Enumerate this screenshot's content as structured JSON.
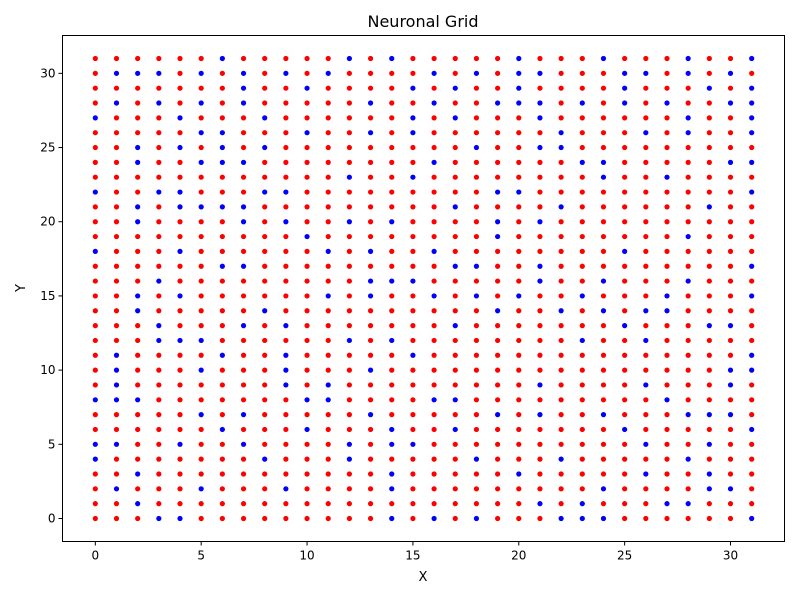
{
  "chart_data": {
    "type": "scatter",
    "title": "Neuronal Grid",
    "xlabel": "X",
    "ylabel": "Y",
    "xlim": [
      -1.55,
      32.55
    ],
    "ylim": [
      -1.55,
      32.55
    ],
    "xticks": [
      0,
      5,
      10,
      15,
      20,
      25,
      30
    ],
    "yticks": [
      0,
      5,
      10,
      15,
      20,
      25,
      30
    ],
    "grid": false,
    "legend": "none",
    "grid_size": 32,
    "colors": {
      "red": "#ff0000",
      "blue": "#0000ff"
    },
    "points_note": "Points at every integer (x, y) with x and y in 0..31; color is red unless listed in blue_points.",
    "blue_points": [
      [
        0,
        4
      ],
      [
        0,
        5
      ],
      [
        0,
        8
      ],
      [
        0,
        18
      ],
      [
        0,
        22
      ],
      [
        0,
        27
      ],
      [
        1,
        2
      ],
      [
        1,
        5
      ],
      [
        1,
        8
      ],
      [
        1,
        9
      ],
      [
        1,
        10
      ],
      [
        1,
        11
      ],
      [
        1,
        28
      ],
      [
        1,
        30
      ],
      [
        2,
        1
      ],
      [
        2,
        3
      ],
      [
        2,
        8
      ],
      [
        2,
        14
      ],
      [
        2,
        15
      ],
      [
        2,
        20
      ],
      [
        2,
        21
      ],
      [
        2,
        24
      ],
      [
        2,
        25
      ],
      [
        2,
        30
      ],
      [
        3,
        0
      ],
      [
        3,
        12
      ],
      [
        3,
        13
      ],
      [
        3,
        16
      ],
      [
        3,
        22
      ],
      [
        3,
        28
      ],
      [
        3,
        30
      ],
      [
        4,
        0
      ],
      [
        4,
        5
      ],
      [
        4,
        12
      ],
      [
        4,
        15
      ],
      [
        4,
        18
      ],
      [
        4,
        21
      ],
      [
        4,
        22
      ],
      [
        4,
        25
      ],
      [
        4,
        27
      ],
      [
        5,
        2
      ],
      [
        5,
        7
      ],
      [
        5,
        10
      ],
      [
        5,
        12
      ],
      [
        5,
        21
      ],
      [
        5,
        24
      ],
      [
        5,
        26
      ],
      [
        5,
        28
      ],
      [
        5,
        30
      ],
      [
        6,
        6
      ],
      [
        6,
        11
      ],
      [
        6,
        17
      ],
      [
        6,
        21
      ],
      [
        6,
        24
      ],
      [
        6,
        25
      ],
      [
        6,
        26
      ],
      [
        6,
        31
      ],
      [
        7,
        5
      ],
      [
        7,
        7
      ],
      [
        7,
        13
      ],
      [
        7,
        17
      ],
      [
        7,
        20
      ],
      [
        7,
        21
      ],
      [
        7,
        24
      ],
      [
        7,
        28
      ],
      [
        7,
        29
      ],
      [
        7,
        30
      ],
      [
        8,
        4
      ],
      [
        8,
        14
      ],
      [
        8,
        22
      ],
      [
        8,
        25
      ],
      [
        8,
        27
      ],
      [
        9,
        2
      ],
      [
        9,
        9
      ],
      [
        9,
        10
      ],
      [
        9,
        11
      ],
      [
        9,
        13
      ],
      [
        9,
        20
      ],
      [
        9,
        22
      ],
      [
        9,
        30
      ],
      [
        10,
        6
      ],
      [
        10,
        8
      ],
      [
        10,
        19
      ],
      [
        10,
        26
      ],
      [
        10,
        29
      ],
      [
        11,
        8
      ],
      [
        11,
        9
      ],
      [
        11,
        15
      ],
      [
        11,
        18
      ],
      [
        11,
        30
      ],
      [
        12,
        4
      ],
      [
        12,
        5
      ],
      [
        12,
        12
      ],
      [
        12,
        20
      ],
      [
        12,
        23
      ],
      [
        12,
        31
      ],
      [
        13,
        7
      ],
      [
        13,
        10
      ],
      [
        13,
        15
      ],
      [
        13,
        16
      ],
      [
        13,
        18
      ],
      [
        13,
        26
      ],
      [
        13,
        28
      ],
      [
        14,
        0
      ],
      [
        14,
        2
      ],
      [
        14,
        3
      ],
      [
        14,
        5
      ],
      [
        14,
        6
      ],
      [
        14,
        12
      ],
      [
        14,
        16
      ],
      [
        14,
        20
      ],
      [
        14,
        31
      ],
      [
        15,
        5
      ],
      [
        15,
        11
      ],
      [
        15,
        16
      ],
      [
        15,
        23
      ],
      [
        15,
        26
      ],
      [
        15,
        27
      ],
      [
        15,
        29
      ],
      [
        16,
        0
      ],
      [
        16,
        8
      ],
      [
        16,
        15
      ],
      [
        16,
        18
      ],
      [
        16,
        24
      ],
      [
        16,
        28
      ],
      [
        16,
        30
      ],
      [
        17,
        6
      ],
      [
        17,
        8
      ],
      [
        17,
        13
      ],
      [
        17,
        17
      ],
      [
        17,
        21
      ],
      [
        17,
        27
      ],
      [
        17,
        29
      ],
      [
        18,
        0
      ],
      [
        18,
        4
      ],
      [
        18,
        15
      ],
      [
        18,
        17
      ],
      [
        18,
        25
      ],
      [
        18,
        30
      ],
      [
        19,
        7
      ],
      [
        19,
        14
      ],
      [
        19,
        19
      ],
      [
        19,
        20
      ],
      [
        19,
        22
      ],
      [
        19,
        28
      ],
      [
        20,
        3
      ],
      [
        20,
        15
      ],
      [
        20,
        22
      ],
      [
        20,
        28
      ],
      [
        20,
        29
      ],
      [
        20,
        30
      ],
      [
        20,
        31
      ],
      [
        21,
        1
      ],
      [
        21,
        7
      ],
      [
        21,
        9
      ],
      [
        21,
        16
      ],
      [
        21,
        17
      ],
      [
        21,
        20
      ],
      [
        21,
        25
      ],
      [
        21,
        27
      ],
      [
        21,
        28
      ],
      [
        21,
        30
      ],
      [
        22,
        0
      ],
      [
        22,
        4
      ],
      [
        22,
        14
      ],
      [
        22,
        21
      ],
      [
        22,
        25
      ],
      [
        22,
        26
      ],
      [
        23,
        0
      ],
      [
        23,
        1
      ],
      [
        23,
        12
      ],
      [
        23,
        15
      ],
      [
        23,
        24
      ],
      [
        23,
        28
      ],
      [
        24,
        0
      ],
      [
        24,
        2
      ],
      [
        24,
        7
      ],
      [
        24,
        14
      ],
      [
        24,
        16
      ],
      [
        24,
        23
      ],
      [
        24,
        24
      ],
      [
        24,
        31
      ],
      [
        25,
        6
      ],
      [
        25,
        13
      ],
      [
        25,
        18
      ],
      [
        25,
        28
      ],
      [
        25,
        29
      ],
      [
        25,
        30
      ],
      [
        26,
        3
      ],
      [
        26,
        5
      ],
      [
        26,
        9
      ],
      [
        26,
        12
      ],
      [
        26,
        14
      ],
      [
        26,
        26
      ],
      [
        26,
        30
      ],
      [
        27,
        1
      ],
      [
        27,
        8
      ],
      [
        27,
        14
      ],
      [
        27,
        15
      ],
      [
        27,
        23
      ],
      [
        27,
        28
      ],
      [
        28,
        1
      ],
      [
        28,
        4
      ],
      [
        28,
        7
      ],
      [
        28,
        16
      ],
      [
        28,
        19
      ],
      [
        28,
        26
      ],
      [
        28,
        27
      ],
      [
        28,
        30
      ],
      [
        28,
        31
      ],
      [
        29,
        2
      ],
      [
        29,
        3
      ],
      [
        29,
        5
      ],
      [
        29,
        7
      ],
      [
        29,
        13
      ],
      [
        29,
        21
      ],
      [
        29,
        29
      ],
      [
        30,
        2
      ],
      [
        30,
        7
      ],
      [
        30,
        9
      ],
      [
        30,
        10
      ],
      [
        30,
        13
      ],
      [
        30,
        24
      ],
      [
        30,
        28
      ],
      [
        30,
        30
      ],
      [
        31,
        0
      ],
      [
        31,
        6
      ],
      [
        31,
        10
      ],
      [
        31,
        11
      ],
      [
        31,
        15
      ],
      [
        31,
        17
      ],
      [
        31,
        22
      ],
      [
        31,
        24
      ],
      [
        31,
        26
      ],
      [
        31,
        27
      ],
      [
        31,
        28
      ],
      [
        31,
        29
      ],
      [
        31,
        31
      ]
    ]
  }
}
